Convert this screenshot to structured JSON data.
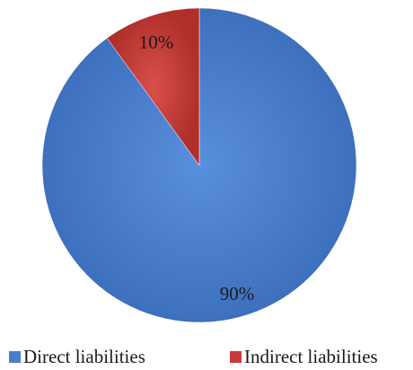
{
  "chart_data": {
    "type": "pie",
    "title": "",
    "categories": [
      "Direct liabilities",
      "Indirect liabilities"
    ],
    "values": [
      90,
      10
    ],
    "data_labels": [
      "90%",
      "10%"
    ],
    "colors": [
      "#4a7ecb",
      "#c93a36"
    ],
    "legend_position": "bottom",
    "start_angle": "12 o'clock",
    "direction": "counterclockwise"
  },
  "legend": {
    "items": [
      {
        "label": "Direct liabilities",
        "color": "#4a7ecb"
      },
      {
        "label": "Indirect liabilities",
        "color": "#c93a36"
      }
    ]
  }
}
